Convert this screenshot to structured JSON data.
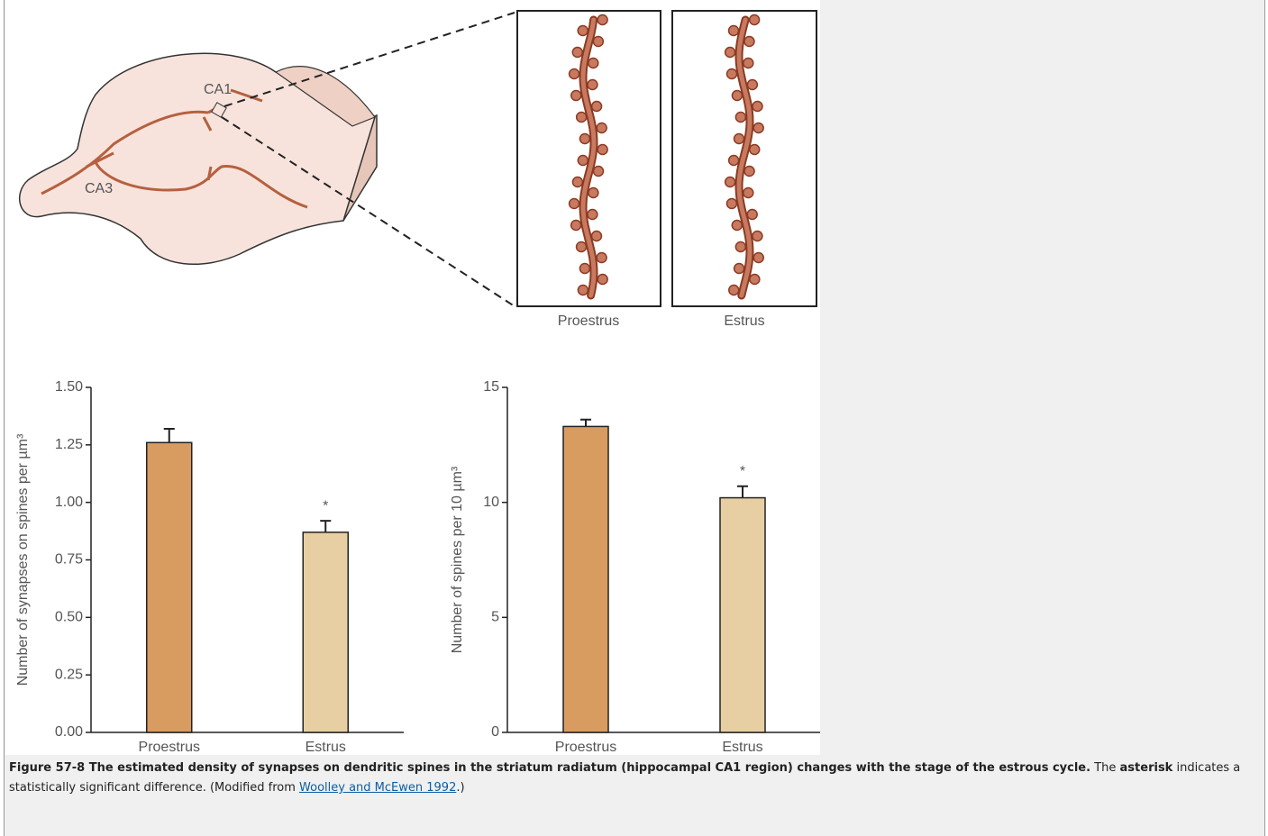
{
  "figure": {
    "labels": {
      "ca1": "CA1",
      "ca3": "CA3",
      "left_panel": "Proestrus",
      "right_panel": "Estrus"
    }
  },
  "chart_data": [
    {
      "type": "bar",
      "y_label": "Number of synapses on spines per µm³",
      "categories": [
        "Proestrus",
        "Estrus"
      ],
      "values": [
        1.26,
        0.87
      ],
      "errors": [
        0.06,
        0.05
      ],
      "markers": [
        null,
        "*"
      ],
      "colors": [
        "#d89b60",
        "#e8cfa3"
      ],
      "ylim": [
        0,
        1.5
      ],
      "yticks": [
        {
          "value": 0,
          "label": "0.00"
        },
        {
          "value": 0.25,
          "label": "0.25"
        },
        {
          "value": 0.5,
          "label": "0.50"
        },
        {
          "value": 0.75,
          "label": "0.75"
        },
        {
          "value": 1,
          "label": "1.00"
        },
        {
          "value": 1.25,
          "label": "1.25"
        },
        {
          "value": 1.5,
          "label": "1.50"
        }
      ]
    },
    {
      "type": "bar",
      "y_label": "Number of spines per 10 µm³",
      "categories": [
        "Proestrus",
        "Estrus"
      ],
      "values": [
        13.3,
        10.2
      ],
      "errors": [
        0.3,
        0.5
      ],
      "markers": [
        null,
        "*"
      ],
      "colors": [
        "#d89b60",
        "#e8cfa3"
      ],
      "ylim": [
        0,
        15
      ],
      "yticks": [
        0,
        5,
        10,
        15
      ]
    }
  ],
  "caption": {
    "title": "Figure 57-8 The estimated density of synapses on dendritic spines in the striatum radiatum (hippocampal CA1 region) changes with the stage of the estrous cycle.",
    "text_1": "The",
    "bold": "asterisk",
    "text_2": "indicates a statistically significant difference. (Modified from",
    "link": "Woolley and McEwen 1992",
    "text_3": ".)"
  }
}
